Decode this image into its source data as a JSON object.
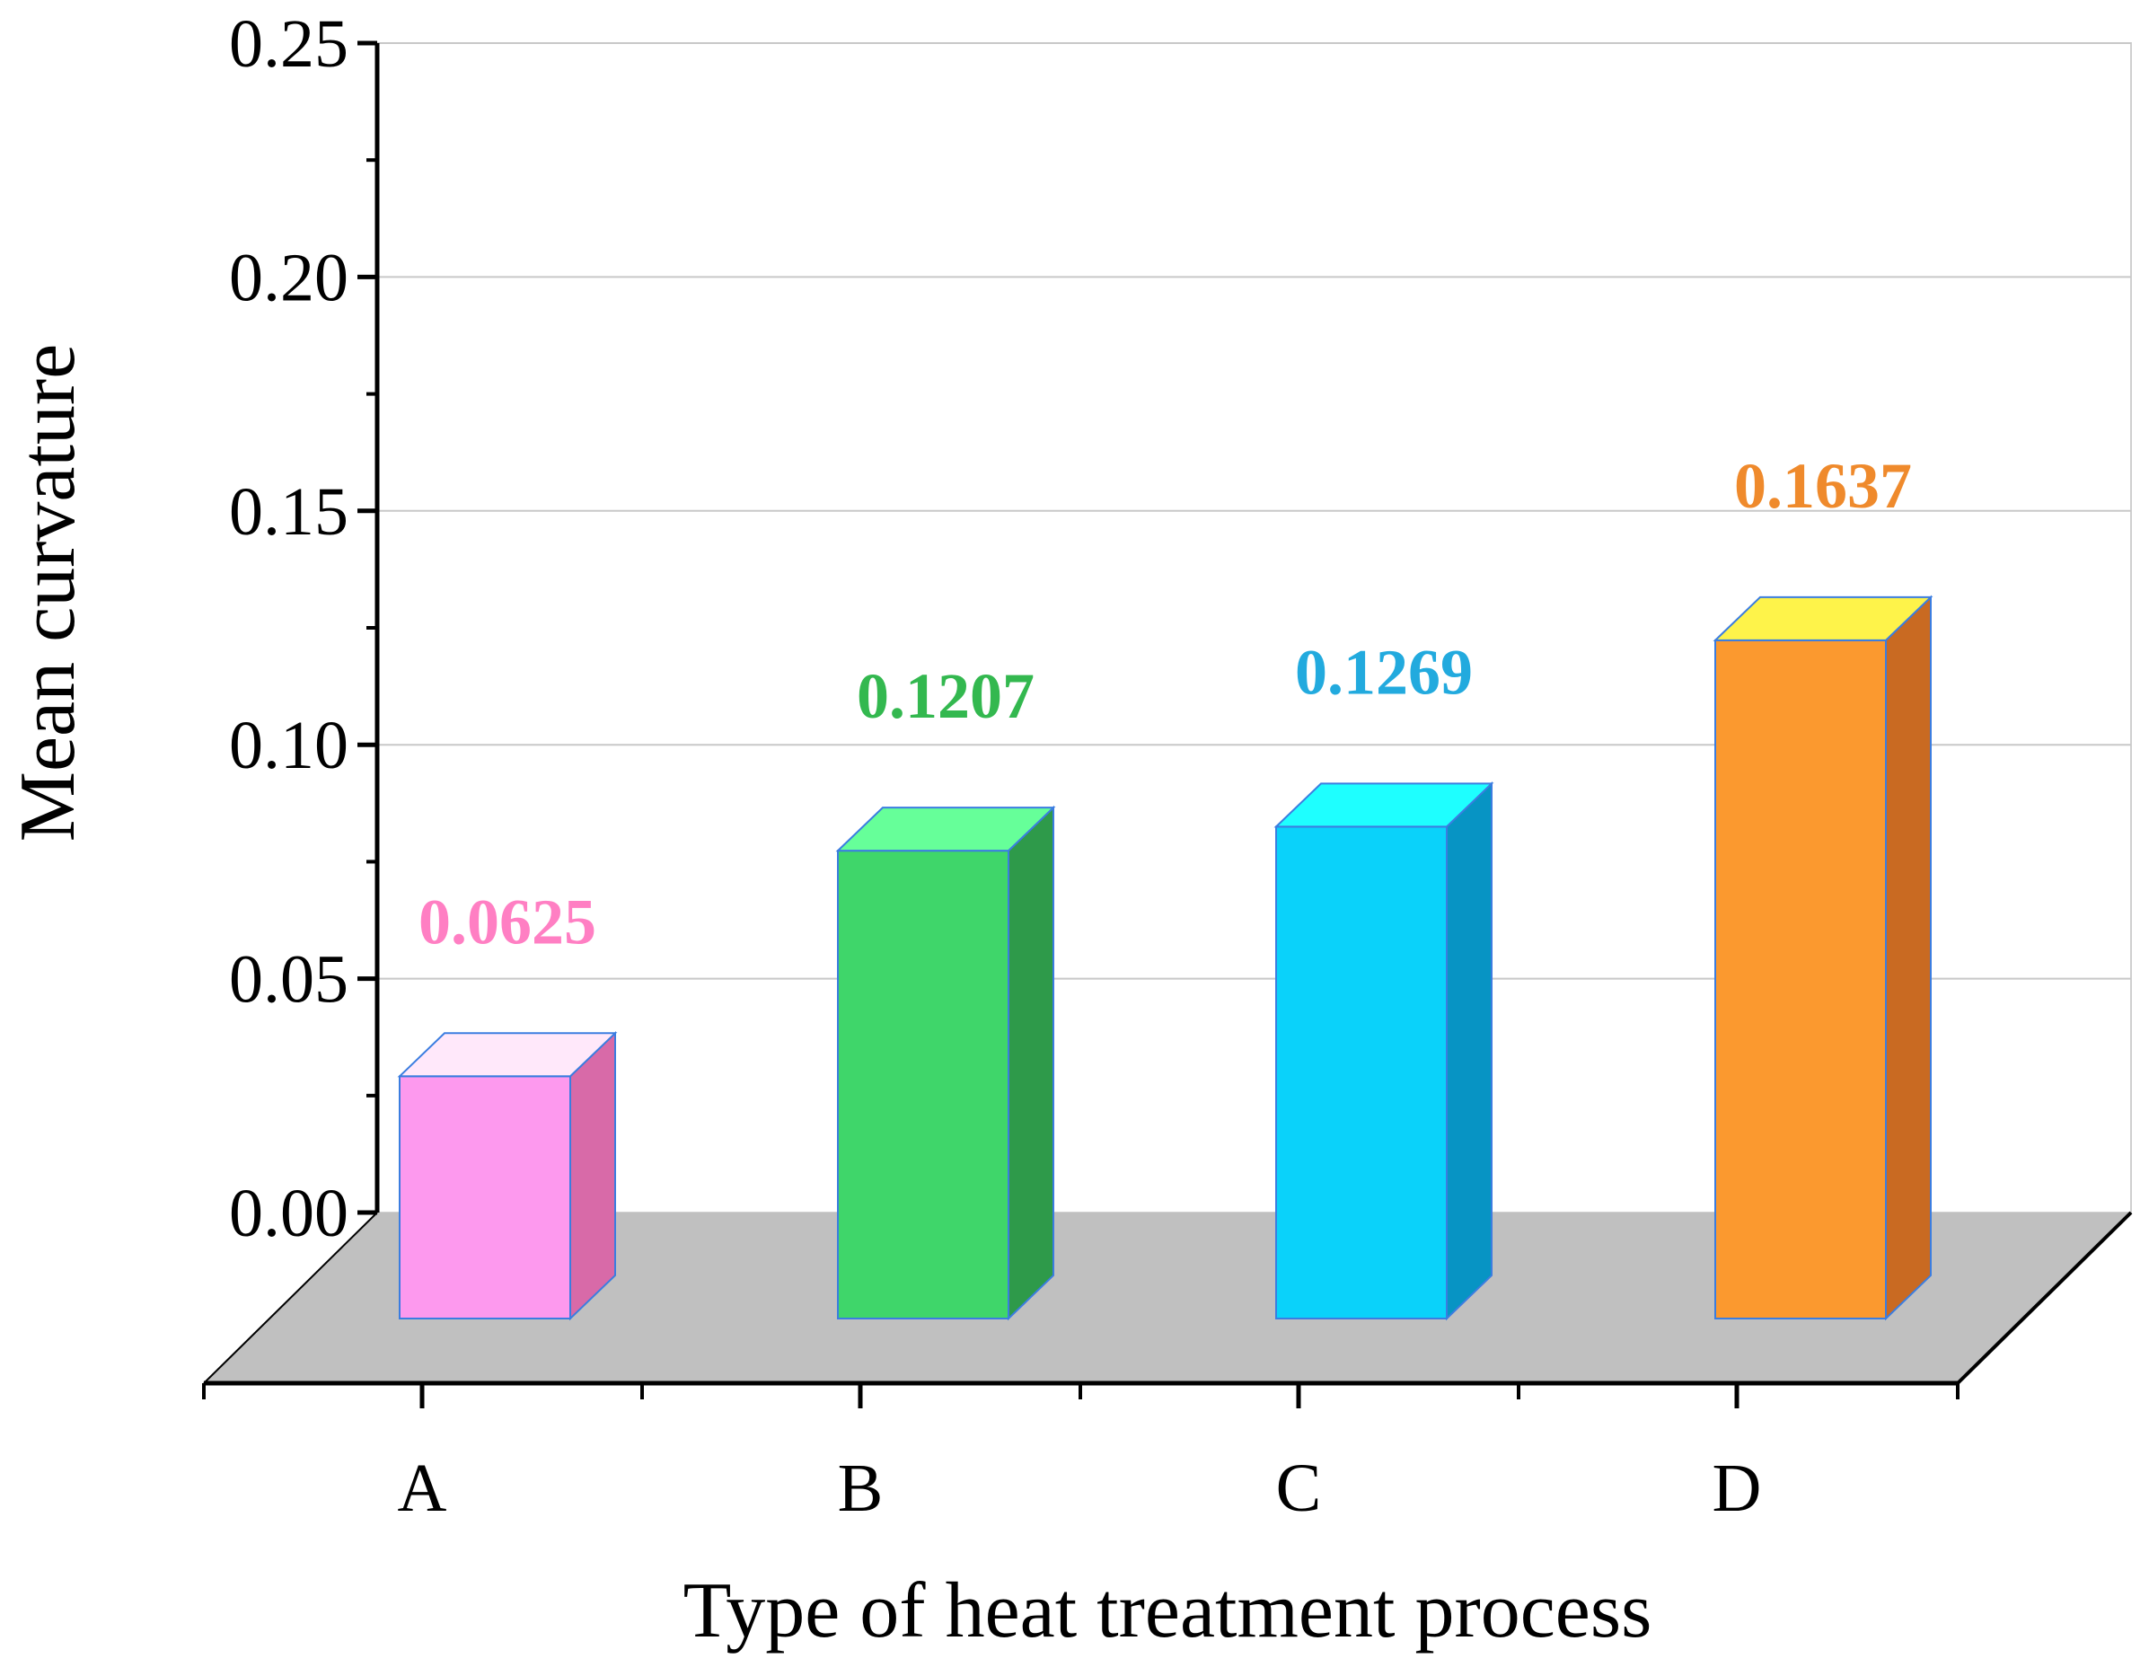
{
  "chart_data": {
    "type": "bar",
    "style": "3d",
    "categories": [
      "A",
      "B",
      "C",
      "D"
    ],
    "values": [
      0.0625,
      0.1207,
      0.1269,
      0.1637
    ],
    "data_labels": [
      "0.0625",
      "0.1207",
      "0.1269",
      "0.1637"
    ],
    "title": "",
    "xlabel": "Type of heat treatment process",
    "ylabel": "Mean curvature",
    "ylim": [
      0,
      0.25
    ],
    "yticks": [
      "0.00",
      "0.05",
      "0.10",
      "0.15",
      "0.20",
      "0.25"
    ],
    "grid": true,
    "legend": "none",
    "colors": {
      "A": {
        "front": "#fd99ee",
        "side": "#d86aa8",
        "top": "#ffe8fa",
        "label": "#ff7fc3"
      },
      "B": {
        "front": "#3fd66a",
        "side": "#2e9a4a",
        "top": "#66ff99",
        "label": "#33b84f"
      },
      "C": {
        "front": "#0ad2fa",
        "side": "#0794c4",
        "top": "#1effff",
        "label": "#22aade"
      },
      "D": {
        "front": "#fb992f",
        "side": "#c96a22",
        "top": "#fef34a",
        "label": "#ef8a2c"
      },
      "floor": "#c0c0c0",
      "grid": "#c8c8c8",
      "bar_edge": "#3b7de0"
    }
  }
}
